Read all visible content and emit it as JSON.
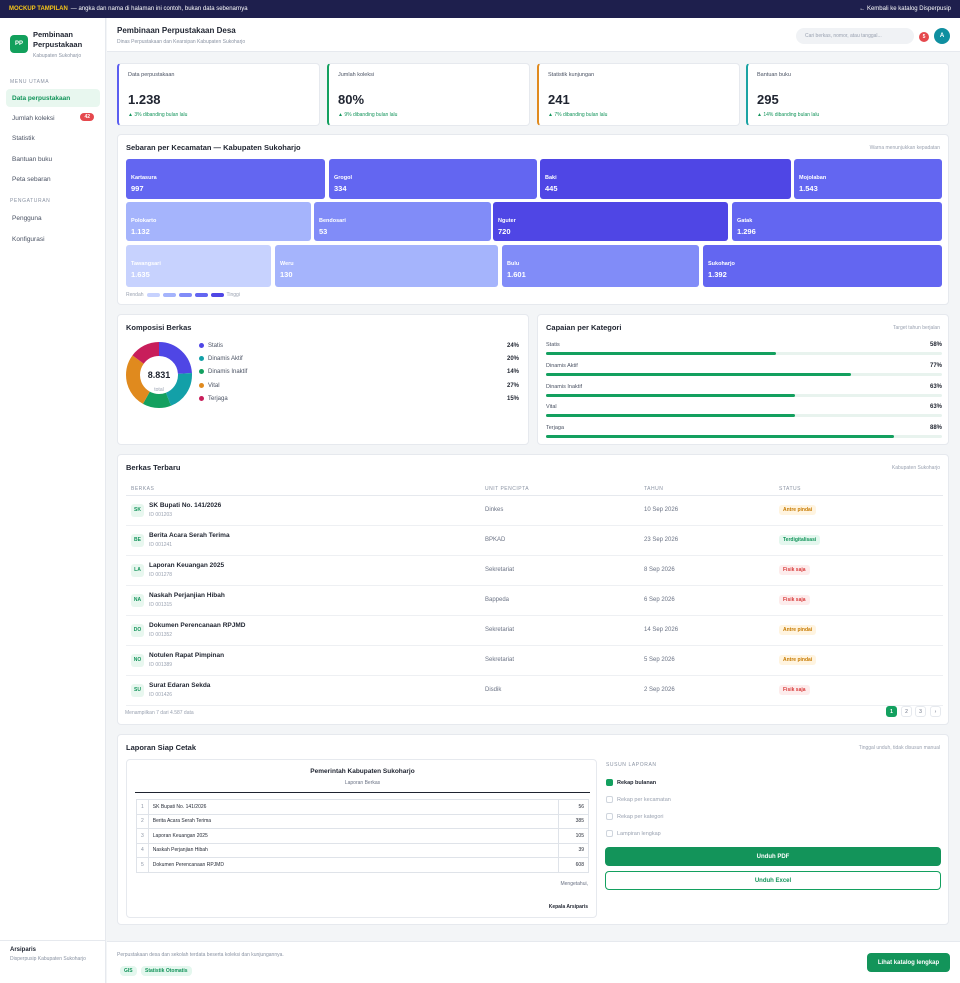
{
  "banner": {
    "tag": "MOCKUP TAMPILAN",
    "text": "— angka dan nama di halaman ini contoh, bukan data sebenarnya",
    "back": "← Kembali ke katalog Disperpusip"
  },
  "sidebar": {
    "logo": "PP",
    "brand": "Pembinaan Perpustakaan",
    "brand_sub": "Kabupaten Sukoharjo",
    "section_main": "MENU UTAMA",
    "main_items": [
      {
        "label": "Data perpustakaan"
      },
      {
        "label": "Jumlah koleksi",
        "badge": "42"
      },
      {
        "label": "Statistik"
      },
      {
        "label": "Bantuan buku"
      },
      {
        "label": "Peta sebaran"
      }
    ],
    "section_settings": "PENGATURAN",
    "settings_items": [
      {
        "label": "Pengguna"
      },
      {
        "label": "Konfigurasi"
      }
    ],
    "footer_name": "Arsiparis",
    "footer_desc": "Disperpusip Kabupaten Sukoharjo"
  },
  "header": {
    "title": "Pembinaan Perpustakaan Desa",
    "subtitle": "Dinas Perpustakaan dan Kearsipan Kabupaten Sukoharjo",
    "search_placeholder": "Cari berkas, nomor, atau tanggal...",
    "notif_count": "5",
    "avatar": "A"
  },
  "stats": [
    {
      "label": "Data perpustakaan",
      "value": "1.238",
      "change": "▲ 3% dibanding bulan lalu",
      "accent": "#5b5ef0"
    },
    {
      "label": "Jumlah koleksi",
      "value": "80%",
      "change": "▲ 9% dibanding bulan lalu",
      "accent": "#13a05f"
    },
    {
      "label": "Statistik kunjungan",
      "value": "241",
      "change": "▲ 7% dibanding bulan lalu",
      "accent": "#e08a1e"
    },
    {
      "label": "Bantuan buku",
      "value": "295",
      "change": "▲ 14% dibanding bulan lalu",
      "accent": "#1aa3a3"
    }
  ],
  "heatmap": {
    "title": "Sebaran per Kecamatan — Kabupaten Sukoharjo",
    "note": "Warna menunjukkan kepadatan",
    "tiles": [
      {
        "name": "Kartasura",
        "value": "997",
        "color": "#6366f1"
      },
      {
        "name": "Grogol",
        "value": "334",
        "color": "#6366f1"
      },
      {
        "name": "Baki",
        "value": "445",
        "color": "#4f46e5"
      },
      {
        "name": "Mojolaban",
        "value": "1.543",
        "color": "#6366f1"
      },
      {
        "name": "Polokarto",
        "value": "1.132",
        "color": "#a5b4fc"
      },
      {
        "name": "Bendosari",
        "value": "53",
        "color": "#818cf8"
      },
      {
        "name": "Nguter",
        "value": "720",
        "color": "#4f46e5"
      },
      {
        "name": "Gatak",
        "value": "1.296",
        "color": "#6366f1"
      },
      {
        "name": "Tawangsari",
        "value": "1.635",
        "color": "#c7d2fe"
      },
      {
        "name": "Weru",
        "value": "130",
        "color": "#a5b4fc"
      },
      {
        "name": "Bulu",
        "value": "1.601",
        "color": "#818cf8"
      },
      {
        "name": "Sukoharjo",
        "value": "1.392",
        "color": "#6366f1"
      }
    ],
    "scale_low": "Rendah",
    "scale_high": "Tinggi",
    "scale_colors": [
      "#c7d2fe",
      "#a5b4fc",
      "#818cf8",
      "#6366f1",
      "#4f46e5"
    ]
  },
  "composition": {
    "title": "Komposisi Berkas",
    "total": "8.831",
    "total_label": "total",
    "items": [
      {
        "label": "Statis",
        "pct": "24%",
        "value": 24,
        "color": "#4f46e5"
      },
      {
        "label": "Dinamis Aktif",
        "pct": "20%",
        "value": 20,
        "color": "#13a0a8"
      },
      {
        "label": "Dinamis Inaktif",
        "pct": "14%",
        "value": 14,
        "color": "#13a05f"
      },
      {
        "label": "Vital",
        "pct": "27%",
        "value": 27,
        "color": "#e08a1e"
      },
      {
        "label": "Terjaga",
        "pct": "15%",
        "value": 15,
        "color": "#c81e5b"
      }
    ]
  },
  "achievement": {
    "title": "Capaian per Kategori",
    "note": "Target tahun berjalan",
    "items": [
      {
        "label": "Statis",
        "pct": "58%",
        "value": 58
      },
      {
        "label": "Dinamis Aktif",
        "pct": "77%",
        "value": 77
      },
      {
        "label": "Dinamis Inaktif",
        "pct": "63%",
        "value": 63
      },
      {
        "label": "Vital",
        "pct": "63%",
        "value": 63
      },
      {
        "label": "Terjaga",
        "pct": "88%",
        "value": 88
      }
    ]
  },
  "files": {
    "title": "Berkas Terbaru",
    "note": "Kabupaten Sukoharjo",
    "columns": [
      "BERKAS",
      "UNIT PENCIPTA",
      "TAHUN",
      "STATUS"
    ],
    "rows": [
      {
        "abbr": "SK",
        "name": "SK Bupati No. 141/2026",
        "id": "ID 001203",
        "unit": "Dinkes",
        "date": "10 Sep 2026",
        "status": "Antre pindai",
        "kind": "w"
      },
      {
        "abbr": "BE",
        "name": "Berita Acara Serah Terima",
        "id": "ID 001241",
        "unit": "BPKAD",
        "date": "23 Sep 2026",
        "status": "Terdigitalisasi",
        "kind": "g"
      },
      {
        "abbr": "LA",
        "name": "Laporan Keuangan 2025",
        "id": "ID 001278",
        "unit": "Sekretariat",
        "date": "8 Sep 2026",
        "status": "Fisik saja",
        "kind": "r"
      },
      {
        "abbr": "NA",
        "name": "Naskah Perjanjian Hibah",
        "id": "ID 001315",
        "unit": "Bappeda",
        "date": "6 Sep 2026",
        "status": "Fisik saja",
        "kind": "r"
      },
      {
        "abbr": "DO",
        "name": "Dokumen Perencanaan RPJMD",
        "id": "ID 001352",
        "unit": "Sekretariat",
        "date": "14 Sep 2026",
        "status": "Antre pindai",
        "kind": "w"
      },
      {
        "abbr": "NO",
        "name": "Notulen Rapat Pimpinan",
        "id": "ID 001389",
        "unit": "Sekretariat",
        "date": "5 Sep 2026",
        "status": "Antre pindai",
        "kind": "w"
      },
      {
        "abbr": "SU",
        "name": "Surat Edaran Sekda",
        "id": "ID 001426",
        "unit": "Disdik",
        "date": "2 Sep 2026",
        "status": "Fisik saja",
        "kind": "r"
      }
    ],
    "summary": "Menampilkan 7 dari 4.587 data",
    "pages": [
      "1",
      "2",
      "3",
      "›"
    ]
  },
  "report": {
    "title": "Laporan Siap Cetak",
    "note": "Tinggal unduh, tidak disusun manual",
    "paper_title": "Pemerintah Kabupaten Sukoharjo",
    "paper_sub": "Laporan Berkas",
    "rows": [
      {
        "no": "1",
        "name": "SK Bupati No. 141/2026",
        "value": "56"
      },
      {
        "no": "2",
        "name": "Berita Acara Serah Terima",
        "value": "385"
      },
      {
        "no": "3",
        "name": "Laporan Keuangan 2025",
        "value": "105"
      },
      {
        "no": "4",
        "name": "Naskah Perjanjian Hibah",
        "value": "39"
      },
      {
        "no": "5",
        "name": "Dokumen Perencanaan RPJMD",
        "value": "608"
      }
    ],
    "known": "Mengetahui,",
    "signer": "Kepala Arsiparis",
    "options_title": "SUSUN LAPORAN",
    "options": [
      {
        "label": "Rekap bulanan",
        "checked": true
      },
      {
        "label": "Rekap per kecamatan",
        "checked": false
      },
      {
        "label": "Rekap per kategori",
        "checked": false
      },
      {
        "label": "Lampiran lengkap",
        "checked": false
      }
    ],
    "pdf": "Unduh PDF",
    "excel": "Unduh Excel"
  },
  "footer": {
    "desc": "Perpustakaan desa dan sekolah terdata beserta koleksi dan kunjungannya.",
    "chips": [
      "GIS",
      "Statistik Otomatis"
    ],
    "cta": "Lihat katalog lengkap"
  }
}
